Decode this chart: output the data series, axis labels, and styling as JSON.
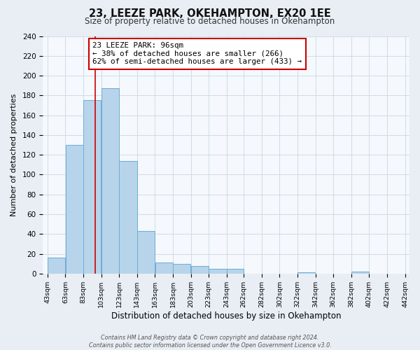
{
  "title": "23, LEEZE PARK, OKEHAMPTON, EX20 1EE",
  "subtitle": "Size of property relative to detached houses in Okehampton",
  "xlabel": "Distribution of detached houses by size in Okehampton",
  "ylabel": "Number of detached properties",
  "bar_values": [
    16,
    130,
    175,
    187,
    114,
    43,
    11,
    10,
    8,
    5,
    5,
    0,
    0,
    0,
    1,
    0,
    0,
    2,
    0,
    0
  ],
  "bin_edges": [
    43,
    63,
    83,
    103,
    123,
    143,
    163,
    183,
    203,
    223,
    243,
    262,
    282,
    302,
    322,
    342,
    362,
    382,
    402,
    422,
    442
  ],
  "bin_labels": [
    "43sqm",
    "63sqm",
    "83sqm",
    "103sqm",
    "123sqm",
    "143sqm",
    "163sqm",
    "183sqm",
    "203sqm",
    "223sqm",
    "243sqm",
    "262sqm",
    "282sqm",
    "302sqm",
    "322sqm",
    "342sqm",
    "362sqm",
    "382sqm",
    "402sqm",
    "422sqm",
    "442sqm"
  ],
  "bar_color": "#b8d4ea",
  "bar_edge_color": "#6aaed6",
  "property_line_x": 96,
  "property_line_color": "#cc0000",
  "annotation_text_line1": "23 LEEZE PARK: 96sqm",
  "annotation_text_line2": "← 38% of detached houses are smaller (266)",
  "annotation_text_line3": "62% of semi-detached houses are larger (433) →",
  "ylim_max": 240,
  "yticks": [
    0,
    20,
    40,
    60,
    80,
    100,
    120,
    140,
    160,
    180,
    200,
    220,
    240
  ],
  "footer_line1": "Contains HM Land Registry data © Crown copyright and database right 2024.",
  "footer_line2": "Contains public sector information licensed under the Open Government Licence v3.0.",
  "fig_bg_color": "#e8eef4",
  "plot_bg_color": "#f5f8fc",
  "grid_color": "#c8d8e8",
  "title_fontsize": 10.5,
  "subtitle_fontsize": 8.5
}
